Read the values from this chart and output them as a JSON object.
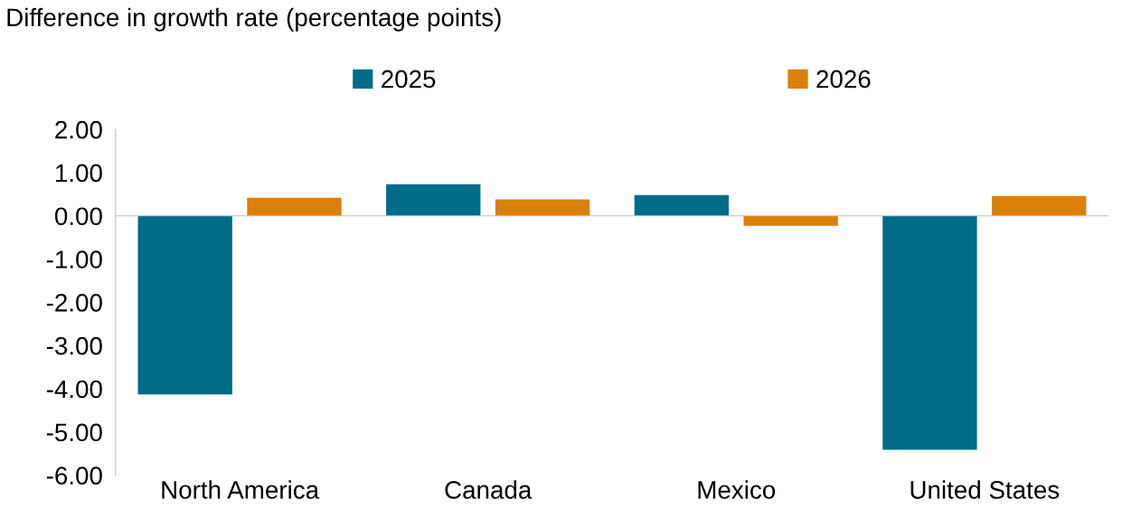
{
  "chart_data": {
    "type": "bar",
    "title": "Difference in growth rate (percentage points)",
    "categories": [
      "North America",
      "Canada",
      "Mexico",
      "United States"
    ],
    "series": [
      {
        "name": "2025",
        "color": "#006c87",
        "values": [
          -4.13,
          0.73,
          0.48,
          -5.41
        ]
      },
      {
        "name": "2026",
        "color": "#dd7f0b",
        "values": [
          0.42,
          0.38,
          -0.23,
          0.46
        ]
      }
    ],
    "ylim": [
      -6,
      2
    ],
    "yticks": [
      {
        "value": 2,
        "label": "2.00"
      },
      {
        "value": 1,
        "label": "1.00"
      },
      {
        "value": 0,
        "label": "0.00"
      },
      {
        "value": -1,
        "label": "-1.00"
      },
      {
        "value": -2,
        "label": "-2.00"
      },
      {
        "value": -3,
        "label": "-3.00"
      },
      {
        "value": -4,
        "label": "-4.00"
      },
      {
        "value": -5,
        "label": "-5.00"
      },
      {
        "value": -6,
        "label": "-6.00"
      }
    ],
    "legend": "top"
  }
}
